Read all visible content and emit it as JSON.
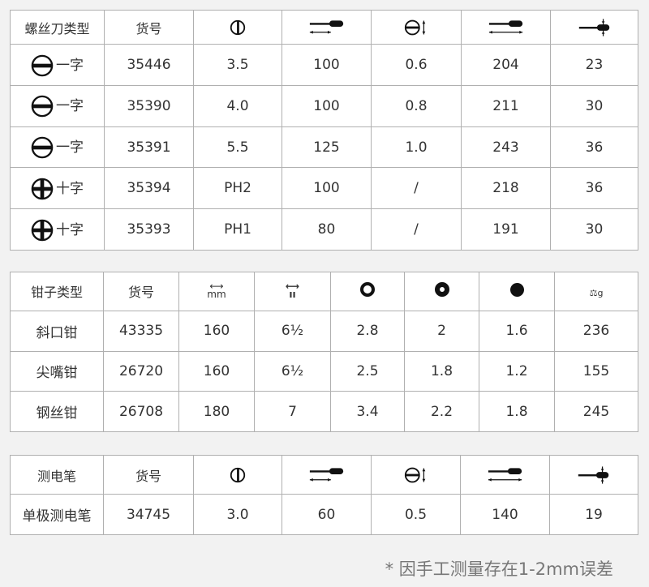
{
  "screwdrivers": {
    "headers": [
      "螺丝刀类型",
      "货号"
    ],
    "header_icons": [
      "blade-width-icon",
      "blade-length-icon",
      "blade-thickness-icon",
      "total-length-icon",
      "handle-diameter-icon"
    ],
    "rows": [
      {
        "icon": "slotted-icon",
        "type": "一字",
        "no": "35446",
        "c": [
          "3.5",
          "100",
          "0.6",
          "204",
          "23"
        ]
      },
      {
        "icon": "slotted-icon",
        "type": "一字",
        "no": "35390",
        "c": [
          "4.0",
          "100",
          "0.8",
          "211",
          "30"
        ]
      },
      {
        "icon": "slotted-icon",
        "type": "一字",
        "no": "35391",
        "c": [
          "5.5",
          "125",
          "1.0",
          "243",
          "36"
        ]
      },
      {
        "icon": "phillips-icon",
        "type": "十字",
        "no": "35394",
        "c": [
          "PH2",
          "100",
          "/",
          "218",
          "36"
        ]
      },
      {
        "icon": "phillips-icon",
        "type": "十字",
        "no": "35393",
        "c": [
          "PH1",
          "80",
          "/",
          "191",
          "30"
        ]
      }
    ]
  },
  "pliers": {
    "headers": [
      "钳子类型",
      "货号"
    ],
    "header_icons": [
      "length-mm-icon",
      "length-inch-icon",
      "hard-wire-icon",
      "medium-wire-icon",
      "soft-wire-icon",
      "weight-icon"
    ],
    "icon_text": {
      "mm": "mm",
      "inch": "ıı",
      "g": "g"
    },
    "rows": [
      {
        "type": "斜口钳",
        "no": "43335",
        "c": [
          "160",
          "6½",
          "2.8",
          "2",
          "1.6",
          "236"
        ]
      },
      {
        "type": "尖嘴钳",
        "no": "26720",
        "c": [
          "160",
          "6½",
          "2.5",
          "1.8",
          "1.2",
          "155"
        ]
      },
      {
        "type": "钢丝钳",
        "no": "26708",
        "c": [
          "180",
          "7",
          "3.4",
          "2.2",
          "1.8",
          "245"
        ]
      }
    ]
  },
  "tester": {
    "headers": [
      "测电笔",
      "货号"
    ],
    "rows": [
      {
        "type": "单极测电笔",
        "no": "34745",
        "c": [
          "3.0",
          "60",
          "0.5",
          "140",
          "19"
        ]
      }
    ]
  },
  "note": "* 因手工测量存在1-2mm误差"
}
